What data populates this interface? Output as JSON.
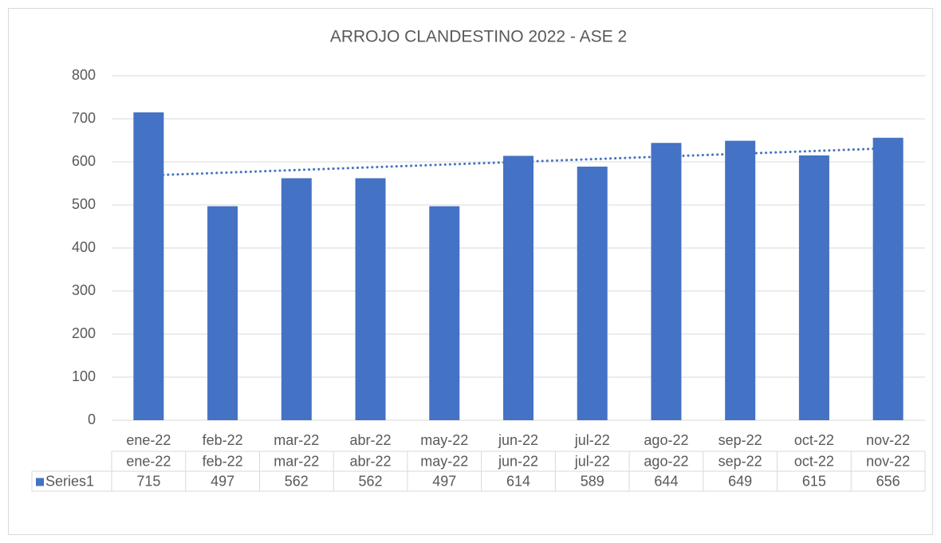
{
  "chart_data": {
    "type": "bar",
    "title": "ARROJO CLANDESTINO 2022 - ASE 2",
    "categories": [
      "ene-22",
      "feb-22",
      "mar-22",
      "abr-22",
      "may-22",
      "jun-22",
      "jul-22",
      "ago-22",
      "sep-22",
      "oct-22",
      "nov-22"
    ],
    "series": [
      {
        "name": "Series1",
        "color": "#4472c4",
        "values": [
          715,
          497,
          562,
          562,
          497,
          614,
          589,
          644,
          649,
          615,
          656
        ]
      }
    ],
    "ylim": [
      0,
      800
    ],
    "yticks": [
      0,
      100,
      200,
      300,
      400,
      500,
      600,
      700,
      800
    ],
    "grid": true,
    "trendline": "linear",
    "data_table": true
  }
}
